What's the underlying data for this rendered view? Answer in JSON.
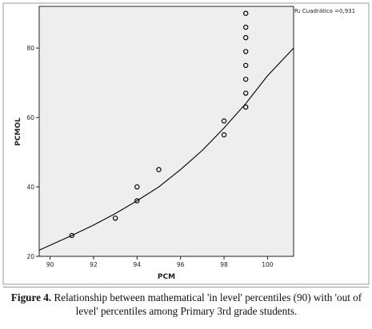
{
  "chart_data": {
    "type": "scatter",
    "xlabel": "PCM",
    "ylabel": "PCMOL",
    "xlim": [
      89.5,
      101.2
    ],
    "ylim": [
      20,
      92
    ],
    "xticks": [
      90,
      92,
      94,
      96,
      98,
      100
    ],
    "yticks": [
      20,
      40,
      60,
      80
    ],
    "grid": false,
    "background": "#eeeeee",
    "point_color": "#000000",
    "r2_text": "R₂ Cuadrático =0,931",
    "points": [
      {
        "x": 91,
        "y": 26
      },
      {
        "x": 93,
        "y": 31
      },
      {
        "x": 94,
        "y": 36
      },
      {
        "x": 94,
        "y": 40
      },
      {
        "x": 95,
        "y": 45
      },
      {
        "x": 98,
        "y": 55
      },
      {
        "x": 98,
        "y": 59
      },
      {
        "x": 99,
        "y": 63
      },
      {
        "x": 99,
        "y": 67
      },
      {
        "x": 99,
        "y": 71
      },
      {
        "x": 99,
        "y": 75
      },
      {
        "x": 99,
        "y": 79
      },
      {
        "x": 99,
        "y": 83
      },
      {
        "x": 99,
        "y": 86
      },
      {
        "x": 99,
        "y": 90
      }
    ],
    "fit_line": {
      "type": "quadratic",
      "points": [
        {
          "x": 89.5,
          "y": 21.8
        },
        {
          "x": 91,
          "y": 26.0
        },
        {
          "x": 92,
          "y": 29.0
        },
        {
          "x": 93,
          "y": 32.3
        },
        {
          "x": 94,
          "y": 36.0
        },
        {
          "x": 95,
          "y": 40.0
        },
        {
          "x": 96,
          "y": 45.0
        },
        {
          "x": 97,
          "y": 50.5
        },
        {
          "x": 98,
          "y": 57.0
        },
        {
          "x": 99,
          "y": 64.0
        },
        {
          "x": 100,
          "y": 72.0
        },
        {
          "x": 101.2,
          "y": 80.0
        }
      ]
    }
  },
  "caption": {
    "label": "Figure 4.",
    "text": " Relationship between mathematical 'in level' percentiles (90) with 'out of level' percentiles among Primary 3rd grade students."
  }
}
